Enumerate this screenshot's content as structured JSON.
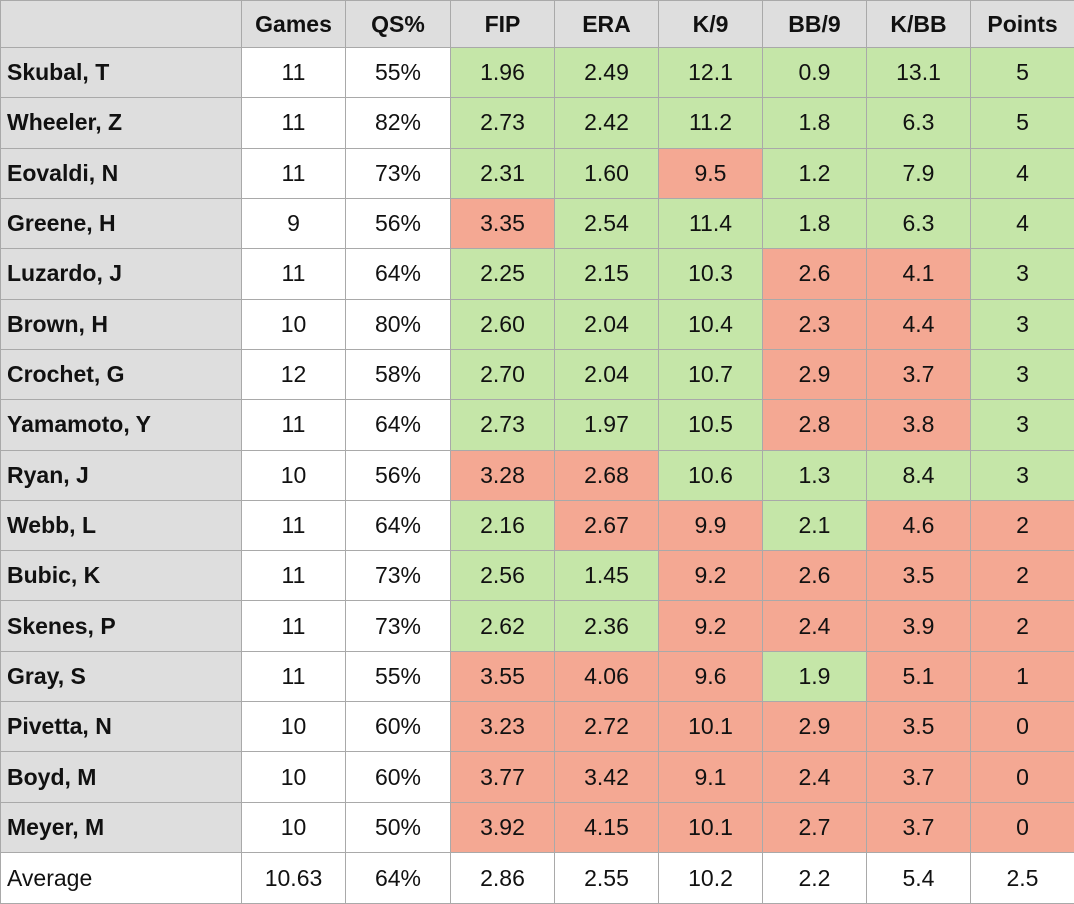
{
  "table": {
    "headers": [
      "",
      "Games",
      "QS%",
      "FIP",
      "ERA",
      "K/9",
      "BB/9",
      "K/BB",
      "Points"
    ],
    "rows": [
      {
        "name": "Skubal, T",
        "games": "11",
        "qs": "55%",
        "fip": "1.96",
        "era": "2.49",
        "k9": "12.1",
        "bb9": "0.9",
        "kbb": "13.1",
        "points": "5",
        "flags": [
          "g",
          "g",
          "g",
          "g",
          "g",
          "g"
        ]
      },
      {
        "name": "Wheeler, Z",
        "games": "11",
        "qs": "82%",
        "fip": "2.73",
        "era": "2.42",
        "k9": "11.2",
        "bb9": "1.8",
        "kbb": "6.3",
        "points": "5",
        "flags": [
          "g",
          "g",
          "g",
          "g",
          "g",
          "g"
        ]
      },
      {
        "name": "Eovaldi, N",
        "games": "11",
        "qs": "73%",
        "fip": "2.31",
        "era": "1.60",
        "k9": "9.5",
        "bb9": "1.2",
        "kbb": "7.9",
        "points": "4",
        "flags": [
          "g",
          "g",
          "r",
          "g",
          "g",
          "g"
        ]
      },
      {
        "name": "Greene, H",
        "games": "9",
        "qs": "56%",
        "fip": "3.35",
        "era": "2.54",
        "k9": "11.4",
        "bb9": "1.8",
        "kbb": "6.3",
        "points": "4",
        "flags": [
          "r",
          "g",
          "g",
          "g",
          "g",
          "g"
        ]
      },
      {
        "name": "Luzardo, J",
        "games": "11",
        "qs": "64%",
        "fip": "2.25",
        "era": "2.15",
        "k9": "10.3",
        "bb9": "2.6",
        "kbb": "4.1",
        "points": "3",
        "flags": [
          "g",
          "g",
          "g",
          "r",
          "r",
          "g"
        ]
      },
      {
        "name": "Brown, H",
        "games": "10",
        "qs": "80%",
        "fip": "2.60",
        "era": "2.04",
        "k9": "10.4",
        "bb9": "2.3",
        "kbb": "4.4",
        "points": "3",
        "flags": [
          "g",
          "g",
          "g",
          "r",
          "r",
          "g"
        ]
      },
      {
        "name": "Crochet, G",
        "games": "12",
        "qs": "58%",
        "fip": "2.70",
        "era": "2.04",
        "k9": "10.7",
        "bb9": "2.9",
        "kbb": "3.7",
        "points": "3",
        "flags": [
          "g",
          "g",
          "g",
          "r",
          "r",
          "g"
        ]
      },
      {
        "name": "Yamamoto, Y",
        "games": "11",
        "qs": "64%",
        "fip": "2.73",
        "era": "1.97",
        "k9": "10.5",
        "bb9": "2.8",
        "kbb": "3.8",
        "points": "3",
        "flags": [
          "g",
          "g",
          "g",
          "r",
          "r",
          "g"
        ]
      },
      {
        "name": "Ryan, J",
        "games": "10",
        "qs": "56%",
        "fip": "3.28",
        "era": "2.68",
        "k9": "10.6",
        "bb9": "1.3",
        "kbb": "8.4",
        "points": "3",
        "flags": [
          "r",
          "r",
          "g",
          "g",
          "g",
          "g"
        ]
      },
      {
        "name": "Webb, L",
        "games": "11",
        "qs": "64%",
        "fip": "2.16",
        "era": "2.67",
        "k9": "9.9",
        "bb9": "2.1",
        "kbb": "4.6",
        "points": "2",
        "flags": [
          "g",
          "r",
          "r",
          "g",
          "r",
          "r"
        ]
      },
      {
        "name": "Bubic, K",
        "games": "11",
        "qs": "73%",
        "fip": "2.56",
        "era": "1.45",
        "k9": "9.2",
        "bb9": "2.6",
        "kbb": "3.5",
        "points": "2",
        "flags": [
          "g",
          "g",
          "r",
          "r",
          "r",
          "r"
        ]
      },
      {
        "name": "Skenes, P",
        "games": "11",
        "qs": "73%",
        "fip": "2.62",
        "era": "2.36",
        "k9": "9.2",
        "bb9": "2.4",
        "kbb": "3.9",
        "points": "2",
        "flags": [
          "g",
          "g",
          "r",
          "r",
          "r",
          "r"
        ]
      },
      {
        "name": "Gray, S",
        "games": "11",
        "qs": "55%",
        "fip": "3.55",
        "era": "4.06",
        "k9": "9.6",
        "bb9": "1.9",
        "kbb": "5.1",
        "points": "1",
        "flags": [
          "r",
          "r",
          "r",
          "g",
          "r",
          "r"
        ]
      },
      {
        "name": "Pivetta, N",
        "games": "10",
        "qs": "60%",
        "fip": "3.23",
        "era": "2.72",
        "k9": "10.1",
        "bb9": "2.9",
        "kbb": "3.5",
        "points": "0",
        "flags": [
          "r",
          "r",
          "r",
          "r",
          "r",
          "r"
        ]
      },
      {
        "name": "Boyd, M",
        "games": "10",
        "qs": "60%",
        "fip": "3.77",
        "era": "3.42",
        "k9": "9.1",
        "bb9": "2.4",
        "kbb": "3.7",
        "points": "0",
        "flags": [
          "r",
          "r",
          "r",
          "r",
          "r",
          "r"
        ]
      },
      {
        "name": "Meyer, M",
        "games": "10",
        "qs": "50%",
        "fip": "3.92",
        "era": "4.15",
        "k9": "10.1",
        "bb9": "2.7",
        "kbb": "3.7",
        "points": "0",
        "flags": [
          "r",
          "r",
          "r",
          "r",
          "r",
          "r"
        ]
      }
    ],
    "average": {
      "label": "Average",
      "games": "10.63",
      "qs": "64%",
      "fip": "2.86",
      "era": "2.55",
      "k9": "10.2",
      "bb9": "2.2",
      "kbb": "5.4",
      "points": "2.5"
    }
  },
  "colors": {
    "header_bg": "#dedede",
    "name_bg": "#dedede",
    "good": "#c5e6a8",
    "bad": "#f4a893",
    "border": "#a9a9a9"
  }
}
